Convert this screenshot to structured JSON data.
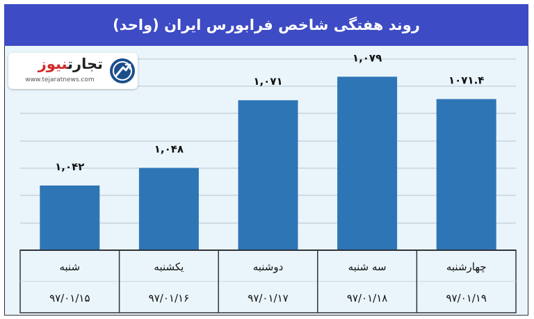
{
  "title": "روند هفتگی شاخص فرابورس ایران (واحد)",
  "logo": {
    "brand_main": "تجارت",
    "brand_accent": "نیوز",
    "url": "www.tejaratnews.com"
  },
  "colors": {
    "title_bar": "#3d4bc4",
    "bar": "#2e75b6",
    "plot_background": "#eaf5fb",
    "logo_accent": "#d12a2a"
  },
  "chart_data": {
    "type": "bar",
    "categories": [
      "شنبه",
      "یکشنبه",
      "دوشنبه",
      "سه شنبه",
      "چهارشنبه"
    ],
    "dates": [
      "۹۷/۰۱/۱۵",
      "۹۷/۰۱/۱۶",
      "۹۷/۰۱/۱۷",
      "۹۷/۰۱/۱۸",
      "۹۷/۰۱/۱۹"
    ],
    "values": [
      1042,
      1048,
      1071,
      1079,
      1071.4
    ],
    "value_labels": [
      "۱,۰۴۲",
      "۱,۰۴۸",
      "۱,۰۷۱",
      "۱,۰۷۹",
      "۱۰۷۱.۴"
    ],
    "ylim": [
      1020,
      1085
    ],
    "grid": true,
    "legend": false
  }
}
